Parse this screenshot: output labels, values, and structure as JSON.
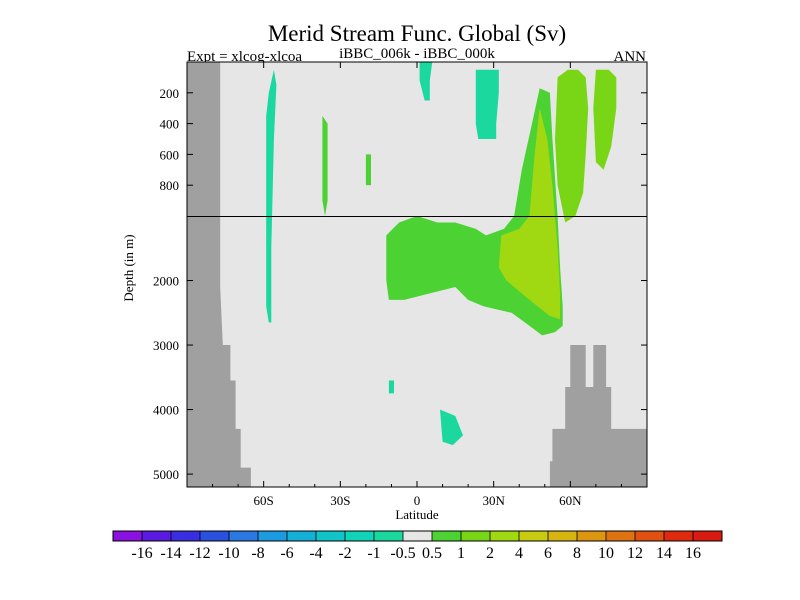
{
  "chart_data": {
    "type": "heatmap",
    "title": "Merid Stream Func. Global (Sv)",
    "left_label": "Expt = xlcog-xlcoa",
    "center_label": "iBBC_006k - iBBC_000k",
    "right_label": "ANN",
    "xlabel": "Latitude",
    "ylabel": "Depth (in m)",
    "xlim": [
      -90,
      90
    ],
    "ylim": [
      5200,
      0
    ],
    "depth_break": 1000,
    "x_ticks": [
      {
        "value": -60,
        "label": "60S"
      },
      {
        "value": -30,
        "label": "30S"
      },
      {
        "value": 0,
        "label": "0"
      },
      {
        "value": 30,
        "label": "30N"
      },
      {
        "value": 60,
        "label": "60N"
      }
    ],
    "y_ticks": [
      {
        "value": 200,
        "label": "200"
      },
      {
        "value": 400,
        "label": "400"
      },
      {
        "value": 600,
        "label": "600"
      },
      {
        "value": 800,
        "label": "800"
      },
      {
        "value": 2000,
        "label": "2000"
      },
      {
        "value": 3000,
        "label": "3000"
      },
      {
        "value": 4000,
        "label": "4000"
      },
      {
        "value": 5000,
        "label": "5000"
      }
    ],
    "background_color": "#e6e6e6",
    "land_color": "#a0a0a0",
    "land_left": [
      [
        -90,
        0
      ],
      [
        -77,
        0
      ],
      [
        -77,
        2100
      ],
      [
        -76,
        3000
      ],
      [
        -73,
        3000
      ],
      [
        -73,
        3550
      ],
      [
        -71,
        3550
      ],
      [
        -71,
        4300
      ],
      [
        -69,
        4300
      ],
      [
        -69,
        4900
      ],
      [
        -65,
        4900
      ],
      [
        -65,
        5200
      ],
      [
        -90,
        5200
      ]
    ],
    "land_right": [
      [
        52,
        5200
      ],
      [
        52,
        4800
      ],
      [
        53,
        4800
      ],
      [
        53,
        4300
      ],
      [
        58,
        4300
      ],
      [
        58,
        3650
      ],
      [
        60,
        3650
      ],
      [
        60,
        3000
      ],
      [
        66,
        3000
      ],
      [
        66,
        3650
      ],
      [
        69,
        3650
      ],
      [
        69,
        3000
      ],
      [
        74,
        3000
      ],
      [
        74,
        3650
      ],
      [
        76,
        3650
      ],
      [
        76,
        4300
      ],
      [
        90,
        4300
      ],
      [
        90,
        5200
      ]
    ],
    "colorbar": {
      "levels": [
        "-16",
        "-14",
        "-12",
        "-10",
        "-8",
        "-6",
        "-4",
        "-2",
        "-1",
        "-0.5",
        "0.5",
        "1",
        "2",
        "4",
        "6",
        "8",
        "10",
        "12",
        "14",
        "16"
      ],
      "colors": [
        "#8a12e0",
        "#5a1be0",
        "#3a2fe0",
        "#2a50e0",
        "#2a78e0",
        "#1c9be0",
        "#14b0d8",
        "#10c4c8",
        "#10d4b8",
        "#1ad89e",
        "#e6e6e6",
        "#4cd232",
        "#78d616",
        "#a0d812",
        "#c8cc10",
        "#d8b410",
        "#dc9610",
        "#de7410",
        "#e05010",
        "#e02a10",
        "#d81a10"
      ]
    },
    "regions": [
      {
        "name": "Southern Ocean column",
        "value": -1,
        "polygon": [
          [
            -58,
            200
          ],
          [
            -59,
            350
          ],
          [
            -59,
            1400
          ],
          [
            -59,
            2400
          ],
          [
            -58,
            2650
          ],
          [
            -57,
            2650
          ],
          [
            -57,
            1500
          ],
          [
            -56,
            500
          ],
          [
            -55,
            150
          ],
          [
            -56,
            50
          ]
        ]
      },
      {
        "name": "Equatorial surface eddy",
        "value": -1,
        "polygon": [
          [
            1,
            0
          ],
          [
            1,
            120
          ],
          [
            3,
            250
          ],
          [
            5,
            250
          ],
          [
            5,
            120
          ],
          [
            6,
            0
          ]
        ]
      },
      {
        "name": "Tropical upper cell",
        "value": -1,
        "polygon": [
          [
            23,
            50
          ],
          [
            23,
            400
          ],
          [
            24,
            500
          ],
          [
            31,
            500
          ],
          [
            31,
            400
          ],
          [
            32,
            200
          ],
          [
            32,
            50
          ]
        ]
      },
      {
        "name": "Abyssal patch 4200m",
        "value": -1,
        "polygon": [
          [
            9,
            4000
          ],
          [
            10,
            4500
          ],
          [
            14,
            4550
          ],
          [
            18,
            4400
          ],
          [
            15,
            4100
          ],
          [
            12,
            4050
          ]
        ]
      },
      {
        "name": "Abyssal speck 3700m",
        "value": -1,
        "polygon": [
          [
            -11,
            3550
          ],
          [
            -11,
            3750
          ],
          [
            -9,
            3750
          ],
          [
            -9,
            3550
          ]
        ]
      },
      {
        "name": "Deep NH cell",
        "value": 0.5,
        "polygon": [
          [
            -12,
            1300
          ],
          [
            -12,
            2000
          ],
          [
            -11,
            2300
          ],
          [
            -5,
            2300
          ],
          [
            5,
            2200
          ],
          [
            15,
            2100
          ],
          [
            20,
            2300
          ],
          [
            26,
            2400
          ],
          [
            37,
            2500
          ],
          [
            44,
            2700
          ],
          [
            49,
            2850
          ],
          [
            54,
            2800
          ],
          [
            57,
            2700
          ],
          [
            57,
            2400
          ],
          [
            56,
            1800
          ],
          [
            55,
            1000
          ],
          [
            53,
            500
          ],
          [
            52,
            200
          ],
          [
            48,
            170
          ],
          [
            45,
            400
          ],
          [
            41,
            700
          ],
          [
            38,
            1000
          ],
          [
            34,
            1200
          ],
          [
            27,
            1300
          ],
          [
            23,
            1200
          ],
          [
            15,
            1100
          ],
          [
            8,
            1100
          ],
          [
            0,
            1000
          ],
          [
            -7,
            1100
          ]
        ]
      },
      {
        "name": "Deep NH cell core",
        "value": 2,
        "polygon": [
          [
            33,
            1300
          ],
          [
            32,
            1800
          ],
          [
            35,
            2000
          ],
          [
            44,
            2300
          ],
          [
            52,
            2550
          ],
          [
            56,
            2600
          ],
          [
            56,
            2200
          ],
          [
            55,
            1500
          ],
          [
            53,
            800
          ],
          [
            51,
            500
          ],
          [
            48,
            300
          ],
          [
            46,
            600
          ],
          [
            44,
            1000
          ],
          [
            40,
            1200
          ]
        ]
      },
      {
        "name": "NH surface cell",
        "value": 1,
        "polygon": [
          [
            55,
            100
          ],
          [
            54,
            500
          ],
          [
            55,
            800
          ],
          [
            58,
            1100
          ],
          [
            62,
            1000
          ],
          [
            65,
            850
          ],
          [
            66,
            600
          ],
          [
            67,
            300
          ],
          [
            66,
            100
          ],
          [
            63,
            50
          ],
          [
            59,
            50
          ]
        ]
      },
      {
        "name": "Far north cell",
        "value": 1,
        "polygon": [
          [
            70,
            50
          ],
          [
            69,
            300
          ],
          [
            70,
            650
          ],
          [
            73,
            700
          ],
          [
            76,
            550
          ],
          [
            78,
            300
          ],
          [
            78,
            100
          ],
          [
            75,
            50
          ]
        ]
      },
      {
        "name": "Subtropical thin column",
        "value": 0.5,
        "polygon": [
          [
            -37,
            350
          ],
          [
            -37,
            900
          ],
          [
            -36,
            1000
          ],
          [
            -35,
            900
          ],
          [
            -35,
            400
          ]
        ]
      },
      {
        "name": "Midlatitude speck",
        "value": 0.5,
        "polygon": [
          [
            -20,
            600
          ],
          [
            -20,
            800
          ],
          [
            -18,
            800
          ],
          [
            -18,
            600
          ]
        ]
      }
    ]
  }
}
